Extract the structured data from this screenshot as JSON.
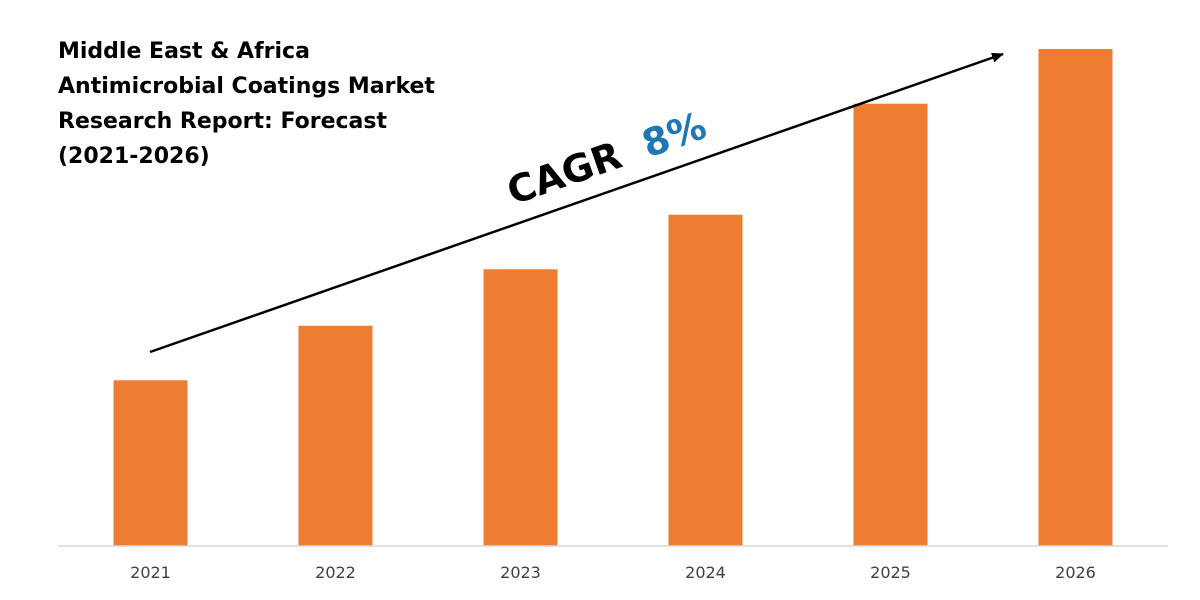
{
  "title_lines": [
    "Middle East & Africa",
    "Antimicrobial Coatings Market",
    "Research Report: Forecast",
    "(2021-2026)"
  ],
  "chart_data": {
    "type": "bar",
    "title": "Middle East & Africa Antimicrobial Coatings Market Research Report: Forecast (2021-2026)",
    "categories": [
      "2021",
      "2022",
      "2023",
      "2024",
      "2025",
      "2026"
    ],
    "values": [
      1,
      1.33,
      1.67,
      2,
      2.67,
      3
    ],
    "ylim": [
      0,
      3
    ],
    "xlabel": "",
    "ylabel": "",
    "grid": false,
    "legend": "none",
    "annotation": {
      "label": "CAGR",
      "value": "8%",
      "label_color": "#000000",
      "value_color": "#1f77b4"
    },
    "colors": {
      "bar": "#ED7D31",
      "axis": "#d9d9d9",
      "tick_label": "#404040",
      "arrow": "#000000"
    }
  }
}
